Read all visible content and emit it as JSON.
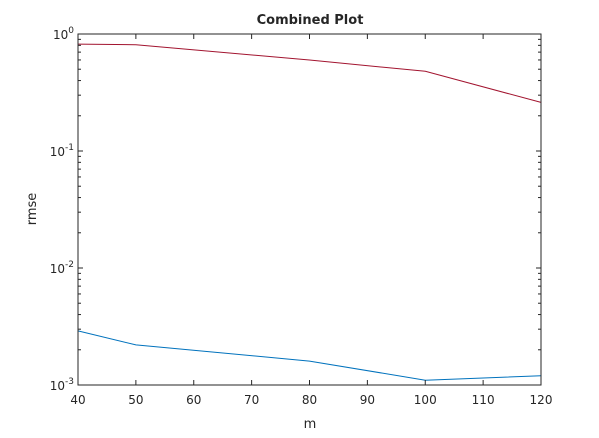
{
  "chart_data": {
    "type": "line",
    "title": "Combined Plot",
    "xlabel": "m",
    "ylabel": "rmse",
    "xlim": [
      40,
      120
    ],
    "ylim": [
      0.001,
      1
    ],
    "yscale": "log",
    "grid": false,
    "box": true,
    "xticks": [
      40,
      50,
      60,
      70,
      80,
      90,
      100,
      110,
      120
    ],
    "yticks": [
      {
        "base": "10",
        "exp": "0",
        "value": 1
      },
      {
        "base": "10",
        "exp": "-1",
        "value": 0.1
      },
      {
        "base": "10",
        "exp": "-2",
        "value": 0.01
      },
      {
        "base": "10",
        "exp": "-3",
        "value": 0.001
      }
    ],
    "series": [
      {
        "color": "#A2142F",
        "x": [
          40,
          50,
          80,
          100,
          120
        ],
        "values": [
          0.82,
          0.81,
          0.6,
          0.48,
          0.26
        ]
      },
      {
        "color": "#0072BD",
        "x": [
          40,
          50,
          80,
          100,
          120
        ],
        "values": [
          0.0029,
          0.0022,
          0.0016,
          0.0011,
          0.0012
        ]
      }
    ]
  }
}
